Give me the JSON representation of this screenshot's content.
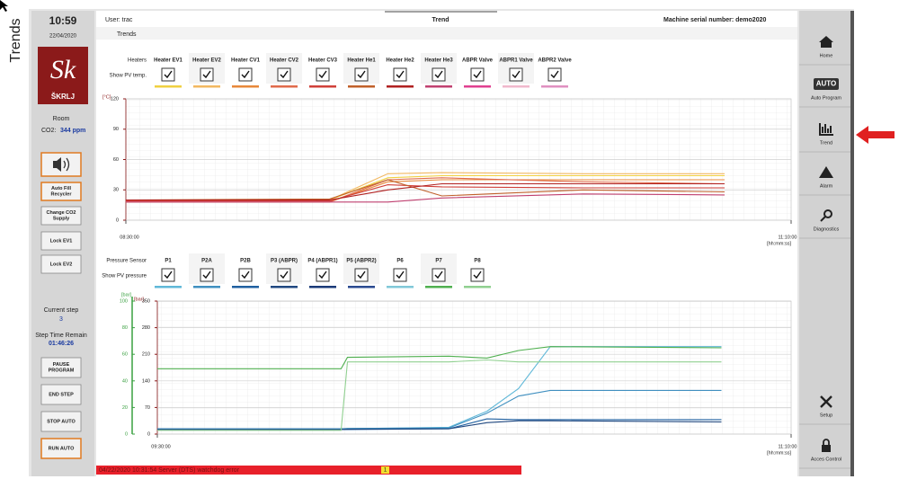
{
  "side_label": "Trends",
  "sidebar": {
    "time": "10:59",
    "date": "22/04/2020",
    "logo_mark": "Sk",
    "logo": "ŠKRLJ",
    "room_label": "Room",
    "co2_label": "CO2:",
    "co2_value": "344 ppm",
    "buttons": [
      "Auto Fill Recycler",
      "Change CO2 Supply",
      "Lock EV1",
      "Lock EV2"
    ],
    "current_step_label": "Current step",
    "current_step": "3",
    "step_time_label": "Step Time Remain",
    "step_time": "01:46:26",
    "control_buttons": [
      "PAUSE PROGRAM",
      "END STEP",
      "STOP AUTO",
      "RUN AUTO"
    ]
  },
  "header": {
    "user": "User: trac",
    "title": "Trend",
    "serial": "Machine serial number: demo2020",
    "tab": "Trends"
  },
  "nav": {
    "auto_icon": "AUTO",
    "items": [
      "Home",
      "Auto Program",
      "Trend",
      "Alarm",
      "Diagnostics",
      "Setup",
      "Acces Control"
    ]
  },
  "heaters": {
    "group_label": "Heaters",
    "show_label": "Show PV temp.",
    "chart_data": {
      "type": "line",
      "y_label": "[°C]",
      "ylim": [
        0,
        120
      ],
      "yticks": [
        0,
        30,
        60,
        90,
        120
      ],
      "xlim": [
        "08:30:00",
        "11:10:00"
      ],
      "xticks": [
        "08:30:00",
        "11:10:00"
      ],
      "x_unit": "[hh:mm:ss]",
      "grid": true,
      "x": [
        "08:30:00",
        "09:19:00",
        "09:33:00",
        "09:46:00",
        "10:20:00",
        "10:54:00"
      ],
      "series": [
        {
          "name": "Heater EV1",
          "color": "#f0d040",
          "values": [
            20,
            20,
            42,
            44,
            44,
            44
          ]
        },
        {
          "name": "Heater EV2",
          "color": "#f2b860",
          "values": [
            20,
            20,
            46,
            47,
            46,
            46
          ]
        },
        {
          "name": "Heater CV1",
          "color": "#e8883a",
          "values": [
            18,
            18,
            38,
            40,
            40,
            40
          ]
        },
        {
          "name": "Heater CV2",
          "color": "#e06a4a",
          "values": [
            18,
            18,
            40,
            42,
            38,
            36
          ]
        },
        {
          "name": "Heater CV3",
          "color": "#d0403a",
          "values": [
            19,
            19,
            35,
            33,
            32,
            32
          ]
        },
        {
          "name": "Heater He1",
          "color": "#c0602a",
          "values": [
            20,
            21,
            40,
            24,
            30,
            28
          ]
        },
        {
          "name": "Heater He2",
          "color": "#b02020",
          "values": [
            20,
            20,
            30,
            36,
            36,
            36
          ]
        },
        {
          "name": "Heater He3",
          "color": "#c04070",
          "values": [
            18,
            18,
            18,
            22,
            26,
            25
          ]
        },
        {
          "name": "ABPR Valve",
          "color": "#e04090"
        },
        {
          "name": "ABPR1 Valve",
          "color": "#f0b8cc"
        },
        {
          "name": "ABPR2 Valve",
          "color": "#e090c0"
        }
      ]
    }
  },
  "pressure": {
    "group_label": "Pressure Sensor",
    "show_label": "Show PV pressure",
    "chart_data": {
      "type": "line",
      "y_label": "[bar]",
      "y2_label": "[bar]",
      "ylim": [
        0,
        350
      ],
      "yticks": [
        0,
        70,
        140,
        210,
        280,
        350
      ],
      "y2lim": [
        0,
        100
      ],
      "y2ticks": [
        0,
        20,
        40,
        60,
        80,
        100
      ],
      "xlim": [
        "09:30:00",
        "11:10:00"
      ],
      "xticks": [
        "09:30:00",
        "11:10:00"
      ],
      "x_unit": "[hh:mm:ss]",
      "grid": true,
      "x": [
        "09:30:00",
        "09:59:00",
        "10:00:00",
        "10:16:00",
        "10:22:00",
        "10:27:00",
        "10:32:00",
        "10:59:00"
      ],
      "series": [
        {
          "name": "P1",
          "color": "#60b8d8",
          "values": [
            14,
            14,
            14,
            18,
            60,
            120,
            230,
            230
          ]
        },
        {
          "name": "P2A",
          "color": "#4090c0",
          "values": [
            14,
            14,
            15,
            16,
            55,
            100,
            115,
            115
          ]
        },
        {
          "name": "P2B",
          "color": "#2060a0",
          "values": [
            12,
            12,
            12,
            14,
            40,
            38,
            38,
            38
          ]
        },
        {
          "name": "P3 (ABPR)",
          "color": "#204880",
          "values": [
            12,
            12,
            13,
            14,
            30,
            35,
            35,
            32
          ]
        },
        {
          "name": "P4 (ABPR1)",
          "color": "#1a3a78"
        },
        {
          "name": "P5 (ABPR2)",
          "color": "#2a4a90"
        },
        {
          "name": "P6",
          "color": "#80c8d8"
        },
        {
          "name": "P7",
          "color": "#50b050",
          "values": [
            172,
            172,
            202,
            205,
            200,
            220,
            230,
            227
          ]
        },
        {
          "name": "P8",
          "color": "#90d090",
          "values": [
            10,
            10,
            190,
            190,
            195,
            190,
            190,
            190
          ]
        }
      ]
    }
  },
  "status": {
    "message": "04/22/2020 10:31:54 Server (DTS) watchdog error",
    "count": "1"
  }
}
